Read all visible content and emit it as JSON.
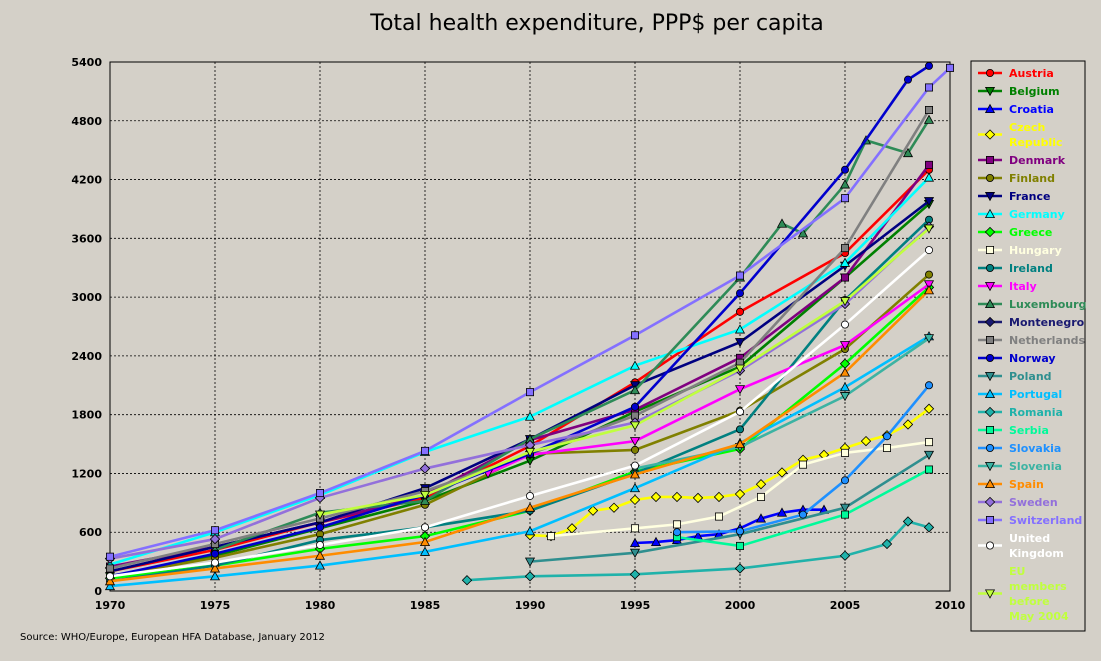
{
  "chart_data": {
    "type": "line",
    "title": "Total health expenditure, PPP$ per capita",
    "xlabel": "",
    "ylabel": "",
    "xlim": [
      1970,
      2010
    ],
    "ylim": [
      0,
      5400
    ],
    "xticks": [
      1970,
      1975,
      1980,
      1985,
      1990,
      1995,
      2000,
      2005,
      2010
    ],
    "yticks": [
      0,
      600,
      1200,
      1800,
      2400,
      3000,
      3600,
      4200,
      4800,
      5400
    ],
    "grid": true,
    "legend_position": "right",
    "source": "Source: WHO/Europe, European HFA Database, January 2012",
    "series": [
      {
        "name": "Austria",
        "color": "#ff0000",
        "marker": "circle",
        "x": [
          1970,
          1975,
          1980,
          1985,
          1990,
          1995,
          2000,
          2005,
          2009
        ],
        "y": [
          200,
          420,
          700,
          950,
          1480,
          2130,
          2850,
          3450,
          4300
        ]
      },
      {
        "name": "Belgium",
        "color": "#008000",
        "marker": "triangle-down",
        "x": [
          1970,
          1975,
          1980,
          1985,
          1990,
          1995,
          2000,
          2005,
          2009
        ],
        "y": [
          150,
          360,
          640,
          920,
          1330,
          1830,
          2290,
          3200,
          3950
        ]
      },
      {
        "name": "Croatia",
        "color": "#0000ff",
        "marker": "triangle",
        "x": [
          1995,
          1996,
          1997,
          1998,
          1999,
          2000,
          2001,
          2002,
          2003,
          2004
        ],
        "y": [
          490,
          500,
          520,
          560,
          580,
          640,
          740,
          800,
          830,
          830
        ]
      },
      {
        "name": "Czech Republic",
        "color": "#ffff00",
        "marker": "diamond",
        "x": [
          1990,
          1991,
          1992,
          1993,
          1994,
          1995,
          1996,
          1997,
          1998,
          1999,
          2000,
          2001,
          2002,
          2003,
          2004,
          2005,
          2006,
          2007,
          2008,
          2009
        ],
        "y": [
          570,
          560,
          640,
          820,
          850,
          930,
          960,
          960,
          950,
          960,
          990,
          1090,
          1210,
          1340,
          1390,
          1460,
          1530,
          1590,
          1700,
          1860
        ]
      },
      {
        "name": "Denmark",
        "color": "#800080",
        "marker": "square",
        "x": [
          1970,
          1975,
          1980,
          1985,
          1990,
          1995,
          2000,
          2005,
          2009
        ],
        "y": [
          250,
          450,
          700,
          980,
          1540,
          1850,
          2380,
          3200,
          4350
        ]
      },
      {
        "name": "Finland",
        "color": "#808000",
        "marker": "circle",
        "x": [
          1970,
          1975,
          1980,
          1985,
          1990,
          1995,
          2000,
          2005,
          2009
        ],
        "y": [
          150,
          340,
          580,
          880,
          1400,
          1440,
          1840,
          2470,
          3230
        ]
      },
      {
        "name": "France",
        "color": "#000080",
        "marker": "triangle-down",
        "x": [
          1970,
          1975,
          1980,
          1985,
          1990,
          1995,
          2000,
          2005,
          2009
        ],
        "y": [
          200,
          450,
          700,
          1050,
          1550,
          2100,
          2540,
          3320,
          3980
        ]
      },
      {
        "name": "Germany",
        "color": "#00ffff",
        "marker": "triangle",
        "x": [
          1970,
          1975,
          1980,
          1985,
          1990,
          1995,
          2000,
          2005,
          2009
        ],
        "y": [
          270,
          600,
          980,
          1420,
          1780,
          2300,
          2670,
          3350,
          4220
        ]
      },
      {
        "name": "Greece",
        "color": "#00ff00",
        "marker": "diamond",
        "x": [
          1970,
          1975,
          1980,
          1985,
          1990,
          1995,
          2000,
          2005,
          2009
        ],
        "y": [
          130,
          260,
          430,
          560,
          820,
          1220,
          1450,
          2320,
          3100
        ]
      },
      {
        "name": "Hungary",
        "color": "#ffffe0",
        "marker": "square",
        "x": [
          1991,
          1995,
          1997,
          1999,
          2001,
          2003,
          2005,
          2007,
          2009
        ],
        "y": [
          560,
          640,
          680,
          760,
          960,
          1290,
          1410,
          1460,
          1520
        ]
      },
      {
        "name": "Ireland",
        "color": "#008080",
        "marker": "circle",
        "x": [
          1970,
          1975,
          1980,
          1985,
          1990,
          1995,
          2000,
          2005,
          2009
        ],
        "y": [
          100,
          260,
          520,
          650,
          820,
          1200,
          1650,
          2970,
          3790
        ]
      },
      {
        "name": "Italy",
        "color": "#ff00ff",
        "marker": "triangle-down",
        "x": [
          1988,
          1990,
          1995,
          2000,
          2005,
          2009
        ],
        "y": [
          1200,
          1390,
          1530,
          2060,
          2510,
          3130
        ]
      },
      {
        "name": "Luxembourg",
        "color": "#2e8b57",
        "marker": "triangle",
        "x": [
          1975,
          1980,
          1985,
          1990,
          1995,
          2000,
          2002,
          2003,
          2005,
          2006,
          2008,
          2009
        ],
        "y": [
          420,
          800,
          920,
          1550,
          2050,
          3200,
          3750,
          3650,
          4150,
          4600,
          4470,
          4810
        ]
      },
      {
        "name": "Montenegro",
        "color": "#191970",
        "marker": "diamond",
        "x": [],
        "y": []
      },
      {
        "name": "Netherlands",
        "color": "#808080",
        "marker": "square",
        "x": [
          1970,
          1975,
          1980,
          1985,
          1990,
          1995,
          2000,
          2005,
          2009
        ],
        "y": [
          230,
          480,
          740,
          1020,
          1400,
          1790,
          2330,
          3500,
          4910
        ]
      },
      {
        "name": "Norway",
        "color": "#0000cd",
        "marker": "circle",
        "x": [
          1970,
          1975,
          1980,
          1985,
          1990,
          1995,
          2000,
          2005,
          2008,
          2009
        ],
        "y": [
          150,
          380,
          650,
          980,
          1400,
          1880,
          3040,
          4300,
          5220,
          5360
        ]
      },
      {
        "name": "Poland",
        "color": "#2f8f8f",
        "marker": "triangle-down",
        "x": [
          1990,
          1995,
          2000,
          2005,
          2009
        ],
        "y": [
          300,
          390,
          580,
          850,
          1390
        ]
      },
      {
        "name": "Portugal",
        "color": "#00bfff",
        "marker": "triangle",
        "x": [
          1970,
          1975,
          1980,
          1985,
          1990,
          1995,
          2000,
          2005,
          2009
        ],
        "y": [
          50,
          150,
          260,
          400,
          610,
          1050,
          1510,
          2080,
          2600
        ]
      },
      {
        "name": "Romania",
        "color": "#20b2aa",
        "marker": "diamond",
        "x": [
          1987,
          1990,
          1995,
          2000,
          2005,
          2007,
          2008,
          2009
        ],
        "y": [
          110,
          150,
          170,
          230,
          360,
          480,
          710,
          650
        ]
      },
      {
        "name": "Serbia",
        "color": "#00fa9a",
        "marker": "square",
        "x": [
          1997,
          2000,
          2005,
          2009
        ],
        "y": [
          550,
          460,
          780,
          1240
        ]
      },
      {
        "name": "Slovakia",
        "color": "#1e90ff",
        "marker": "circle",
        "x": [
          1997,
          2000,
          2003,
          2005,
          2007,
          2009
        ],
        "y": [
          600,
          610,
          780,
          1130,
          1580,
          2100
        ]
      },
      {
        "name": "Slovenia",
        "color": "#3cb3a3",
        "marker": "triangle-down",
        "x": [
          1995,
          2000,
          2005,
          2009
        ],
        "y": [
          1250,
          1470,
          1990,
          2580
        ]
      },
      {
        "name": "Spain",
        "color": "#ff8c00",
        "marker": "triangle",
        "x": [
          1970,
          1975,
          1980,
          1985,
          1990,
          1995,
          2000,
          2005,
          2009
        ],
        "y": [
          100,
          230,
          360,
          500,
          850,
          1190,
          1500,
          2230,
          3070
        ]
      },
      {
        "name": "Sweden",
        "color": "#9370db",
        "marker": "diamond",
        "x": [
          1970,
          1975,
          1980,
          1985,
          1990,
          1995,
          2000,
          2005,
          2009
        ],
        "y": [
          330,
          530,
          950,
          1250,
          1490,
          1720,
          2250,
          2930,
          3720
        ]
      },
      {
        "name": "Switzerland",
        "color": "#8470ff",
        "marker": "square",
        "x": [
          1970,
          1975,
          1980,
          1985,
          1990,
          1995,
          2000,
          2005,
          2009,
          2010
        ],
        "y": [
          350,
          620,
          1000,
          1430,
          2030,
          2610,
          3220,
          4010,
          5140,
          5340
        ]
      },
      {
        "name": "United Kingdom",
        "color": "#ffffff",
        "marker": "circle",
        "x": [
          1970,
          1975,
          1980,
          1985,
          1990,
          1995,
          2000,
          2005,
          2009
        ],
        "y": [
          150,
          290,
          470,
          650,
          970,
          1280,
          1830,
          2720,
          3480
        ]
      },
      {
        "name": "EU members before May 2004",
        "color": "#c0ff3e",
        "marker": "triangle-down",
        "x": [
          1980,
          1985,
          1990,
          1995,
          2000,
          2005,
          2009
        ],
        "y": [
          780,
          980,
          1420,
          1690,
          2270,
          2960,
          3700
        ]
      }
    ]
  },
  "legend_labels": [
    "Austria",
    "Belgium",
    "Croatia",
    "Czech Republic",
    "Denmark",
    "Finland",
    "France",
    "Germany",
    "Greece",
    "Hungary",
    "Ireland",
    "Italy",
    "Luxembourg",
    "Montenegro",
    "Netherlands",
    "Norway",
    "Poland",
    "Portugal",
    "Romania",
    "Serbia",
    "Slovakia",
    "Slovenia",
    "Spain",
    "Sweden",
    "Switzerland",
    "United Kingdom",
    "EU members before May 2004"
  ]
}
